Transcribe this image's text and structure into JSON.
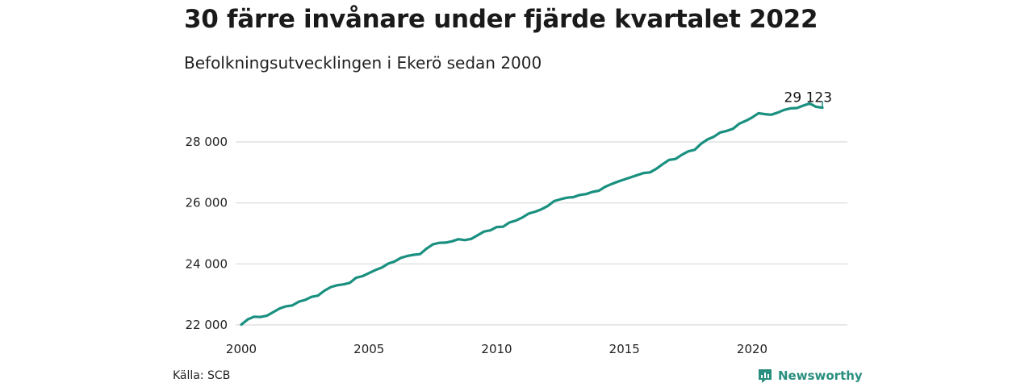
{
  "title": "30 färre invånare under fjärde kvartalet 2022",
  "subtitle": "Befolkningsutvecklingen i Ekerö sedan 2000",
  "source": "Källa: SCB",
  "brand": "Newsworthy",
  "colors": {
    "line": "#1a9080",
    "grid": "#d9d9d9",
    "brand": "#2a8f80"
  },
  "chart_data": {
    "type": "line",
    "title": "30 färre invånare under fjärde kvartalet 2022",
    "subtitle": "Befolkningsutvecklingen i Ekerö sedan 2000",
    "xlabel": "",
    "ylabel": "",
    "xlim": [
      2000,
      2023
    ],
    "ylim": [
      22000,
      29600
    ],
    "x_ticks": [
      2000,
      2005,
      2010,
      2015,
      2020
    ],
    "x_tick_labels": [
      "2000",
      "2005",
      "2010",
      "2015",
      "2020"
    ],
    "y_ticks": [
      22000,
      24000,
      26000,
      28000
    ],
    "y_tick_labels": [
      "22 000",
      "24 000",
      "26 000",
      "28 000"
    ],
    "grid": true,
    "end_label": "29 123",
    "series": [
      {
        "x": [
          2000.0,
          2000.25,
          2000.5,
          2000.75,
          2001.0,
          2001.25,
          2001.5,
          2001.75,
          2002.0,
          2002.25,
          2002.5,
          2002.75,
          2003.0,
          2003.25,
          2003.5,
          2003.75,
          2004.0,
          2004.25,
          2004.5,
          2004.75,
          2005.0,
          2005.25,
          2005.5,
          2005.75,
          2006.0,
          2006.25,
          2006.5,
          2006.75,
          2007.0,
          2007.25,
          2007.5,
          2007.75,
          2008.0,
          2008.25,
          2008.5,
          2008.75,
          2009.0,
          2009.25,
          2009.5,
          2009.75,
          2010.0,
          2010.25,
          2010.5,
          2010.75,
          2011.0,
          2011.25,
          2011.5,
          2011.75,
          2012.0,
          2012.25,
          2012.5,
          2012.75,
          2013.0,
          2013.25,
          2013.5,
          2013.75,
          2014.0,
          2014.25,
          2014.5,
          2014.75,
          2015.0,
          2015.25,
          2015.5,
          2015.75,
          2016.0,
          2016.25,
          2016.5,
          2016.75,
          2017.0,
          2017.25,
          2017.5,
          2017.75,
          2018.0,
          2018.25,
          2018.5,
          2018.75,
          2019.0,
          2019.25,
          2019.5,
          2019.75,
          2020.0,
          2020.25,
          2020.5,
          2020.75,
          2021.0,
          2021.25,
          2021.5,
          2021.75,
          2022.0,
          2022.25,
          2022.5,
          2022.75
        ],
        "values": [
          22010,
          22180,
          22270,
          22260,
          22300,
          22420,
          22540,
          22610,
          22640,
          22760,
          22820,
          22920,
          22960,
          23120,
          23240,
          23300,
          23330,
          23380,
          23550,
          23600,
          23700,
          23800,
          23880,
          24010,
          24080,
          24200,
          24260,
          24300,
          24320,
          24500,
          24640,
          24690,
          24700,
          24740,
          24810,
          24780,
          24820,
          24940,
          25060,
          25100,
          25210,
          25220,
          25360,
          25420,
          25520,
          25650,
          25710,
          25790,
          25900,
          26060,
          26120,
          26170,
          26190,
          26260,
          26290,
          26360,
          26400,
          26530,
          26620,
          26700,
          26770,
          26840,
          26910,
          26980,
          27000,
          27120,
          27270,
          27410,
          27440,
          27580,
          27690,
          27740,
          27940,
          28080,
          28170,
          28310,
          28360,
          28430,
          28600,
          28690,
          28800,
          28940,
          28910,
          28890,
          28960,
          29050,
          29100,
          29110,
          29190,
          29260,
          29153,
          29123
        ]
      }
    ]
  }
}
